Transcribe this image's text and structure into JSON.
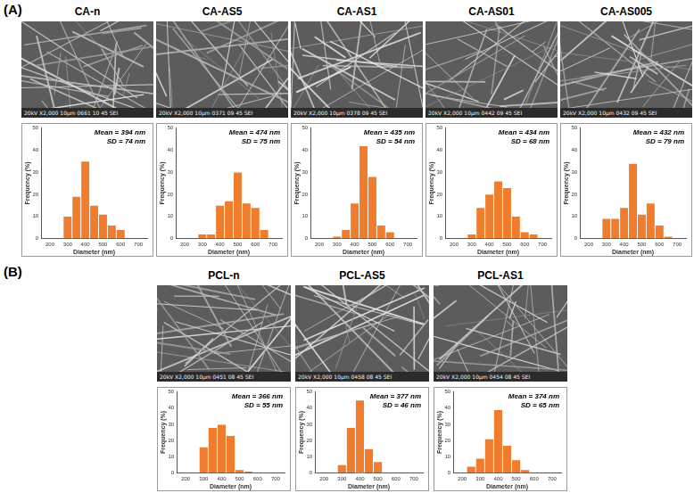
{
  "chart_data": [
    {
      "type": "histogram",
      "panel": "(A)",
      "title": "CA-n",
      "micrograph_label": "20kV  X2,000  10µm  0661  10 45 SEI",
      "x_label": "Diameter (nm)",
      "y_label": "Frequency (%)",
      "annotations": [
        "Mean = 394 nm",
        "SD = 74 nm"
      ],
      "bins": [
        225,
        275,
        325,
        375,
        425,
        475,
        525,
        575,
        625,
        675,
        725
      ],
      "values": [
        0,
        10,
        19,
        35,
        15,
        11,
        6,
        4,
        0,
        0
      ],
      "color": "#f07d2d",
      "xlim": [
        200,
        700
      ],
      "xticks": [
        200,
        300,
        400,
        500,
        600,
        700
      ],
      "ylim": [
        0,
        50
      ],
      "yticks": [
        0,
        10,
        20,
        30,
        40,
        50
      ],
      "grid": false
    },
    {
      "type": "histogram",
      "panel": "(A)",
      "title": "CA-AS5",
      "micrograph_label": "20kV  X2,000  10µm  0371  09 45 SEI",
      "x_label": "Diameter (nm)",
      "y_label": "Frequency (%)",
      "annotations": [
        "Mean = 474 nm",
        "SD = 75 nm"
      ],
      "bins": [
        225,
        275,
        325,
        375,
        425,
        475,
        525,
        575,
        625,
        675,
        725
      ],
      "values": [
        0,
        2,
        2,
        15,
        17,
        30,
        16,
        14,
        4,
        0
      ],
      "color": "#f07d2d",
      "xlim": [
        200,
        700
      ],
      "xticks": [
        200,
        300,
        400,
        500,
        600,
        700
      ],
      "ylim": [
        0,
        50
      ],
      "yticks": [
        0,
        10,
        20,
        30,
        40,
        50
      ],
      "grid": false
    },
    {
      "type": "histogram",
      "panel": "(A)",
      "title": "CA-AS1",
      "micrograph_label": "20kV  X2,000  10µm  0378  09 45 SEI",
      "x_label": "Diameter (nm)",
      "y_label": "Frequency (%)",
      "annotations": [
        "Mean = 435 nm",
        "SD = 54 nm"
      ],
      "bins": [
        225,
        275,
        325,
        375,
        425,
        475,
        525,
        575,
        625,
        675,
        725
      ],
      "values": [
        0,
        1,
        4,
        16,
        42,
        28,
        6,
        3,
        0,
        0
      ],
      "color": "#f07d2d",
      "xlim": [
        200,
        700
      ],
      "xticks": [
        200,
        300,
        400,
        500,
        600,
        700
      ],
      "ylim": [
        0,
        50
      ],
      "yticks": [
        0,
        10,
        20,
        30,
        40,
        50
      ],
      "grid": false
    },
    {
      "type": "histogram",
      "panel": "(A)",
      "title": "CA-AS01",
      "micrograph_label": "20kV  X2,000  10µm  0442  09 45 SEI",
      "x_label": "Diameter (nm)",
      "y_label": "Frequency (%)",
      "annotations": [
        "Mean = 434 nm",
        "SD = 68 nm"
      ],
      "bins": [
        225,
        275,
        325,
        375,
        425,
        475,
        525,
        575,
        625,
        675,
        725
      ],
      "values": [
        0,
        2,
        14,
        20,
        26,
        23,
        10,
        3,
        2,
        0
      ],
      "color": "#f07d2d",
      "xlim": [
        200,
        700
      ],
      "xticks": [
        200,
        300,
        400,
        500,
        600,
        700
      ],
      "ylim": [
        0,
        50
      ],
      "yticks": [
        0,
        10,
        20,
        30,
        40,
        50
      ],
      "grid": false
    },
    {
      "type": "histogram",
      "panel": "(A)",
      "title": "CA-AS005",
      "micrograph_label": "20kV  X2,000  10µm  0432  09 45 SEI",
      "x_label": "Diameter (nm)",
      "y_label": "Frequency (%)",
      "annotations": [
        "Mean = 432 nm",
        "SD = 79 nm"
      ],
      "bins": [
        225,
        275,
        325,
        375,
        425,
        475,
        525,
        575,
        625,
        675,
        725
      ],
      "values": [
        0,
        9,
        9,
        14,
        34,
        11,
        16,
        6,
        1,
        0
      ],
      "color": "#f07d2d",
      "xlim": [
        200,
        700
      ],
      "xticks": [
        200,
        300,
        400,
        500,
        600,
        700
      ],
      "ylim": [
        0,
        50
      ],
      "yticks": [
        0,
        10,
        20,
        30,
        40,
        50
      ],
      "grid": false
    },
    {
      "type": "histogram",
      "panel": "(B)",
      "title": "PCL-n",
      "micrograph_label": "20kV  X2,000  10µm  0451  08 45 SEI",
      "x_label": "Diameter (nm)",
      "y_label": "Frequency (%)",
      "annotations": [
        "Mean = 366 nm",
        "SD = 55 nm"
      ],
      "bins": [
        225,
        275,
        325,
        375,
        425,
        475,
        525,
        575,
        625,
        675,
        725
      ],
      "values": [
        0,
        16,
        28,
        30,
        23,
        2,
        1,
        0,
        0,
        0
      ],
      "color": "#f07d2d",
      "xlim": [
        200,
        700
      ],
      "xticks": [
        200,
        300,
        400,
        500,
        600,
        700
      ],
      "ylim": [
        0,
        50
      ],
      "yticks": [
        0,
        10,
        20,
        30,
        40,
        50
      ],
      "grid": false
    },
    {
      "type": "histogram",
      "panel": "(B)",
      "title": "PCL-AS5",
      "micrograph_label": "20kV  X2,000  10µm  0458  08 45 SEI",
      "x_label": "Diameter (nm)",
      "y_label": "Frequency (%)",
      "annotations": [
        "Mean = 377 nm",
        "SD = 46 nm"
      ],
      "bins": [
        225,
        275,
        325,
        375,
        425,
        475,
        525,
        575,
        625,
        675,
        725
      ],
      "values": [
        0,
        5,
        28,
        45,
        15,
        7,
        0,
        0,
        0,
        0
      ],
      "color": "#f07d2d",
      "xlim": [
        200,
        700
      ],
      "xticks": [
        200,
        300,
        400,
        500,
        600,
        700
      ],
      "ylim": [
        0,
        50
      ],
      "yticks": [
        0,
        10,
        20,
        30,
        40,
        50
      ],
      "grid": false
    },
    {
      "type": "histogram",
      "panel": "(B)",
      "title": "PCL-AS1",
      "micrograph_label": "20kV  X2,000  10µm  0454  08 45 SEI",
      "x_label": "Diameter (nm)",
      "y_label": "Frequency (%)",
      "annotations": [
        "Mean = 374 nm",
        "SD = 65 nm"
      ],
      "bins": [
        225,
        275,
        325,
        375,
        425,
        475,
        525,
        575,
        625,
        675,
        725
      ],
      "values": [
        4,
        9,
        21,
        39,
        17,
        8,
        2,
        0,
        0,
        0
      ],
      "color": "#f07d2d",
      "xlim": [
        200,
        700
      ],
      "xticks": [
        200,
        300,
        400,
        500,
        600,
        700
      ],
      "ylim": [
        0,
        50
      ],
      "yticks": [
        0,
        10,
        20,
        30,
        40,
        50
      ],
      "grid": false
    }
  ]
}
